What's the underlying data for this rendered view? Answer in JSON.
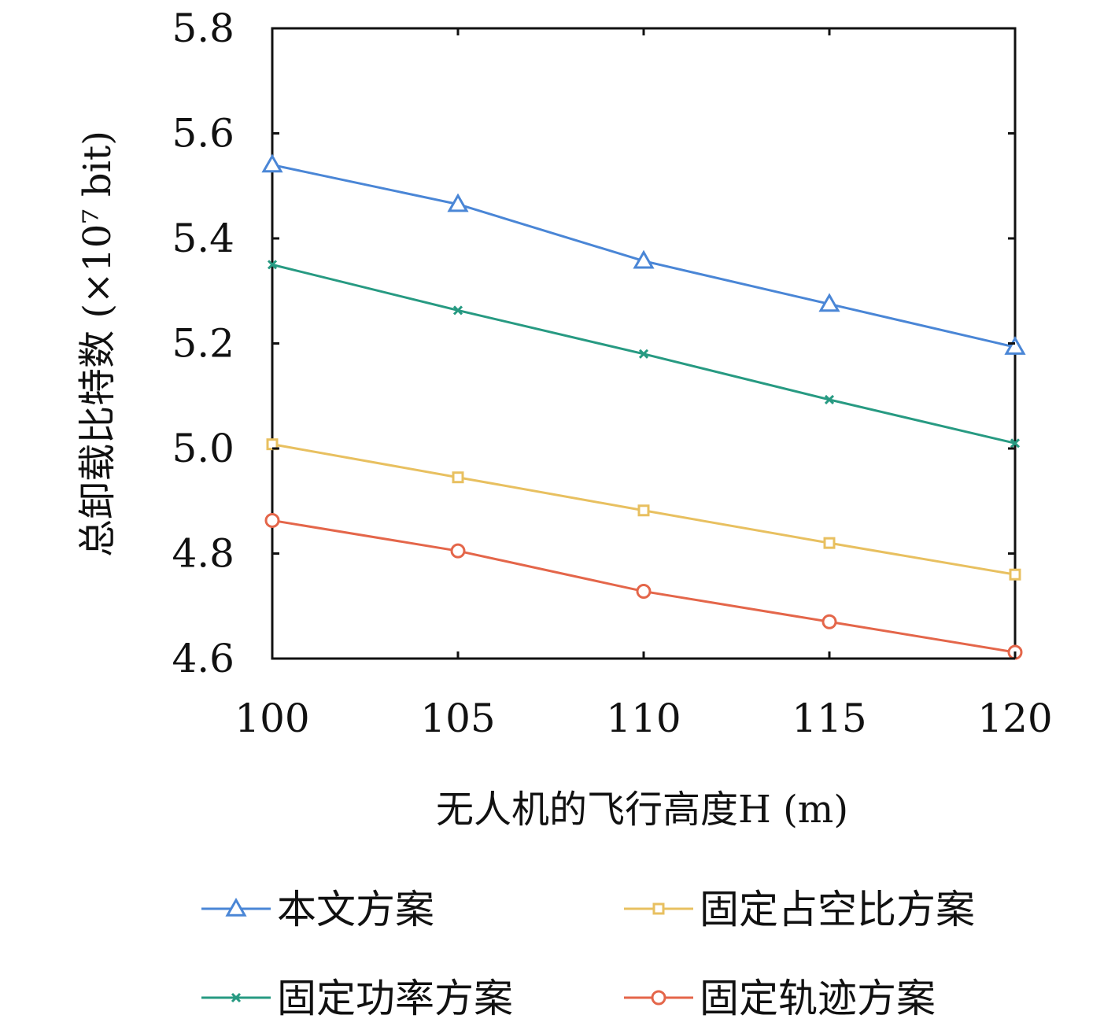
{
  "chart_data": {
    "type": "line",
    "title": "",
    "xlabel": "无人机的飞行高度H (m)",
    "ylabel": "总卸载比特数 (×10⁷ bit)",
    "x": [
      100,
      105,
      110,
      115,
      120
    ],
    "xlim": [
      100,
      120
    ],
    "ylim": [
      4.6,
      5.8
    ],
    "xticks": [
      100,
      105,
      110,
      115,
      120
    ],
    "yticks": [
      "4.6",
      "4.8",
      "5.0",
      "5.2",
      "5.4",
      "5.6",
      "5.8"
    ],
    "grid": false,
    "legend_position": "bottom",
    "series": [
      {
        "name": "本文方案",
        "color": "#4a86d6",
        "marker": "triangle",
        "values": [
          5.54,
          5.465,
          5.357,
          5.275,
          5.193
        ]
      },
      {
        "name": "固定占空比方案",
        "color": "#e8c060",
        "marker": "square",
        "values": [
          5.008,
          4.945,
          4.882,
          4.82,
          4.76
        ]
      },
      {
        "name": "固定功率方案",
        "color": "#279a82",
        "marker": "x",
        "values": [
          5.35,
          5.263,
          5.18,
          5.093,
          5.01
        ]
      },
      {
        "name": "固定轨迹方案",
        "color": "#e4664a",
        "marker": "circle",
        "values": [
          4.863,
          4.805,
          4.728,
          4.67,
          4.612
        ]
      }
    ]
  }
}
